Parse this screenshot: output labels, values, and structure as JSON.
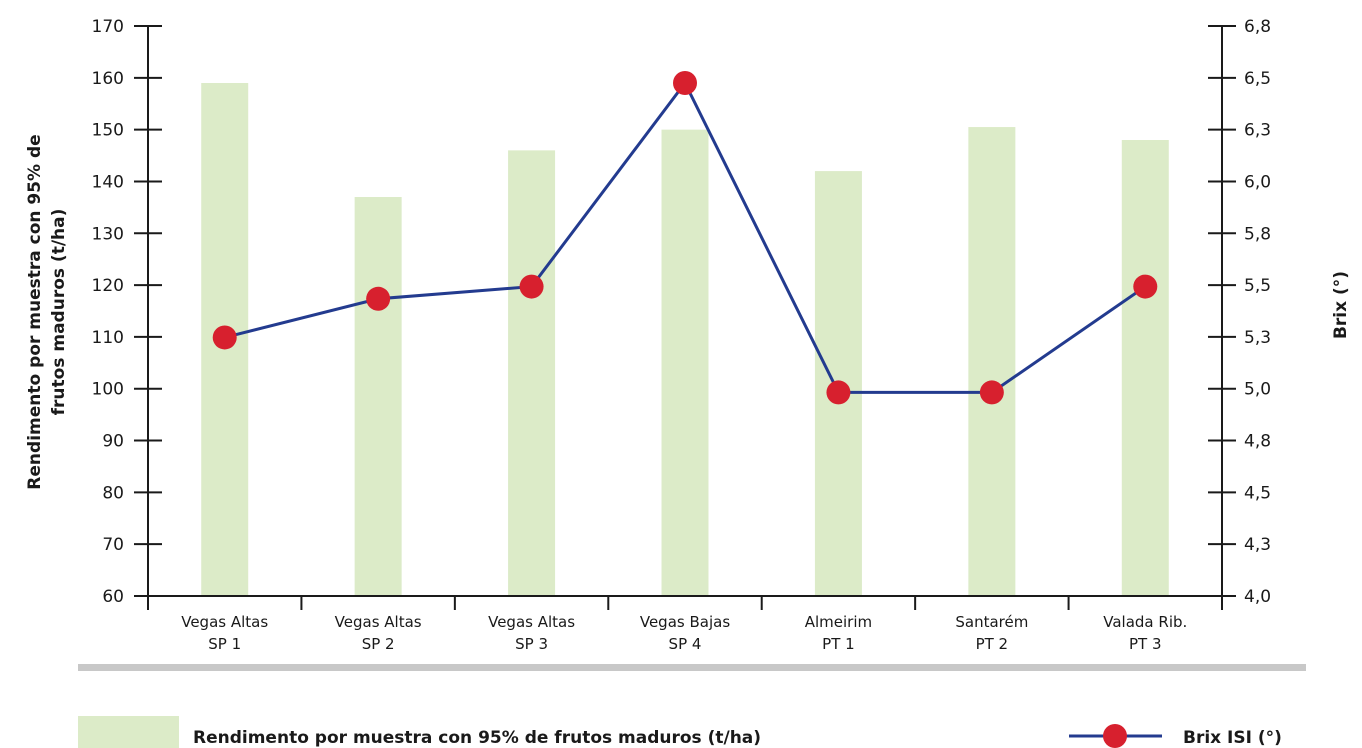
{
  "chart_data": {
    "type": "bar",
    "categories": [
      [
        "Vegas Altas",
        "SP 1"
      ],
      [
        "Vegas Altas",
        "SP 2"
      ],
      [
        "Vegas Altas",
        "SP 3"
      ],
      [
        "Vegas Bajas",
        "SP 4"
      ],
      [
        "Almeirim",
        "PT 1"
      ],
      [
        "Santarém",
        "PT 2"
      ],
      [
        "Valada Rib.",
        "PT 3"
      ]
    ],
    "ylabel_left": [
      "Rendimento por muestra con 95% de",
      "frutos maduros (t/ha)"
    ],
    "ylabel_right": "Brix (°)",
    "ylim_left": [
      60,
      170
    ],
    "yticks_left": [
      "60",
      "70",
      "80",
      "90",
      "100",
      "110",
      "120",
      "130",
      "140",
      "150",
      "160",
      "170"
    ],
    "ylim_right": [
      4.0,
      6.8
    ],
    "yticks_right": [
      "4,0",
      "4,3",
      "4,5",
      "4,8",
      "5,0",
      "5,3",
      "5,5",
      "5,8",
      "6,0",
      "6,3",
      "6,5",
      "6,8"
    ],
    "series": [
      {
        "name": "Rendimento por muestra con 95% de frutos maduros (t/ha)",
        "type": "bar",
        "axis": "left",
        "color": "#dcebc8",
        "values": [
          159,
          137,
          146,
          150,
          142,
          150.5,
          148
        ]
      },
      {
        "name": "Brix ISI (°)",
        "type": "line",
        "axis": "right",
        "line_color": "#233b8f",
        "marker_color": "#d7202e",
        "values": [
          5.27,
          5.46,
          5.52,
          6.52,
          5.0,
          5.0,
          5.52
        ]
      }
    ],
    "legend_position": "bottom",
    "divider_color": "#c8c8c8",
    "grid": false
  }
}
